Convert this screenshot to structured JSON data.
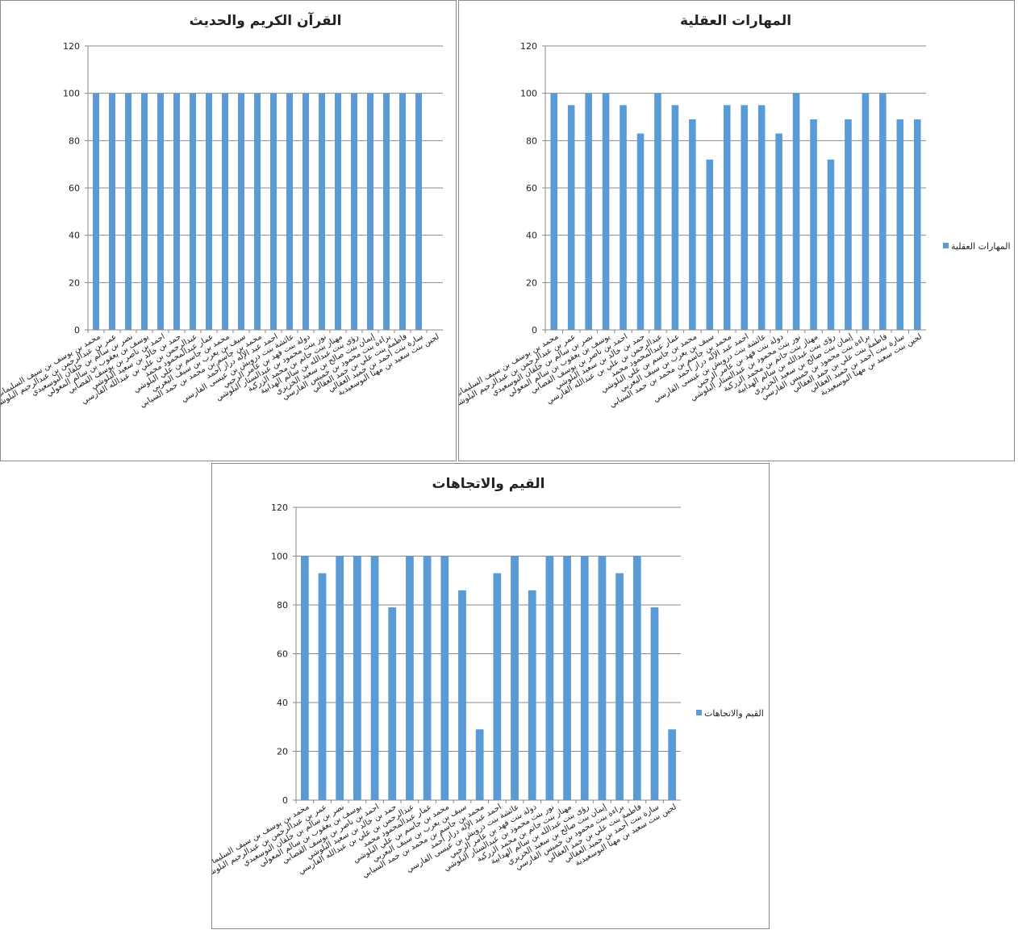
{
  "chart_data": [
    {
      "type": "bar",
      "title": "القرآن الكريم والحديث",
      "categories": [
        "محمد بن يوسف بن سيف السليماني",
        "عمر بن عبدالرحمن بن عبدالرحيم البلوشي",
        "نصر بن سالم بن خلفان البوسعيدي",
        "يوسف بن يعقوب بن سالم المعولي",
        "احمد بن ناصر بن يوسف القصابي",
        "حمد بن خالد بن سعيد البلوشي",
        "عبدالرحمن بن علي بن عبدالله الفارسي",
        "عمار عبدالمحمود محمد",
        "محمد بن جاسم بن علي البلوشي",
        "سيف بن يعرب بن سيف اليعربي",
        "محمد بن جاسم بن محمد بن حمد السيابي",
        "احمد عبد الإله دراز أحمد",
        "عائشة بنت درويش بن عيسى الفارسي",
        "دولة بنت فهد بن عامر الرحبي",
        "نور بنت محمود بن عبدالستار البلوشي",
        "مهناز بنت حاتم بن محمد الزركية",
        "رؤى بنت عبدالله بن سالم الهدابية",
        "إيمان بنت صالح بن سعيد الخزيري",
        "براءة بنت محمود بن خميس الفارسي",
        "فاطمة بنت علي بن حمد العقالي",
        "سارة بنت أحمد بن حميد العقالي",
        "لجين بنت سعيد بن مهنا البوسعيدية"
      ],
      "values": [
        100,
        100,
        100,
        100,
        100,
        100,
        100,
        100,
        100,
        100,
        100,
        100,
        100,
        100,
        100,
        100,
        100,
        100,
        100,
        100,
        100,
        null
      ],
      "color": "#5b9bd5",
      "ylim": [
        0,
        120
      ],
      "yticks": [
        0,
        20,
        40,
        60,
        80,
        100,
        120
      ],
      "grid": true
    },
    {
      "type": "bar",
      "title": "المهارات العقلية",
      "categories": [
        "محمد بن يوسف بن سيف السليماني",
        "عمر بن عبدالرحمن بن عبدالرحيم البلوشي",
        "نصر بن سالم بن خلفان البوسعيدي",
        "يوسف بن يعقوب بن سالم المعولي",
        "احمد بن ناصر بن يوسف القصابي",
        "حمد بن خالد بن سعيد البلوشي",
        "عبدالرحمن بن علي بن عبدالله الفارسي",
        "عمار عبدالمحمود محمد",
        "محمد بن جاسم بن علي البلوشي",
        "سيف بن يعرب بن سيف اليعربي",
        "محمد بن جاسم بن محمد بن حمد السيابي",
        "احمد عبد الإله دراز أحمد",
        "عائشة بنت درويش بن عيسى الفارسي",
        "دولة بنت فهد بن عامر الرحبي",
        "نور بنت محمود بن عبدالستار البلوشي",
        "مهناز بنت حاتم بن محمد الزركية",
        "رؤى بنت عبدالله بن سالم الهدابية",
        "إيمان بنت صالح بن سعيد الخزيري",
        "براءة بنت محمود بن خميس الفارسي",
        "فاطمة بنت علي بن حمد العقالي",
        "سارة بنت أحمد بن حميد العقالي",
        "لجين بنت سعيد بن مهنا البوسعيدية"
      ],
      "series": [
        {
          "name": "المهارات العقلية",
          "color": "#5b9bd5",
          "values": [
            100,
            95,
            100,
            100,
            95,
            83,
            100,
            95,
            89,
            72,
            95,
            95,
            95,
            83,
            100,
            89,
            72,
            89,
            100,
            100,
            89,
            89
          ]
        }
      ],
      "ylim": [
        0,
        120
      ],
      "yticks": [
        0,
        20,
        40,
        60,
        80,
        100,
        120
      ],
      "grid": true,
      "legend": "right"
    },
    {
      "type": "bar",
      "title": "القيم والاتجاهات",
      "categories": [
        "محمد بن يوسف بن سيف السليماني",
        "عمر بن عبدالرحمن بن عبدالرحيم البلوشي",
        "نصر بن سالم بن خلفان البوسعيدي",
        "يوسف بن يعقوب بن سالم المعولي",
        "احمد بن ناصر بن يوسف القصابي",
        "حمد بن خالد بن سعيد البلوشي",
        "عبدالرحمن بن علي بن عبدالله الفارسي",
        "عمار عبدالمحمود محمد",
        "محمد بن جاسم بن علي البلوشي",
        "سيف بن يعرب بن سيف اليعربي",
        "محمد بن جاسم بن محمد بن حمد السيابي",
        "احمد عبد الإله دراز أحمد",
        "عائشة بنت درويش بن عيسى الفارسي",
        "دولة بنت فهد بن عامر الرحبي",
        "نور بنت محمود بن عبدالستار البلوشي",
        "مهناز بنت حاتم بن محمد الزركية",
        "رؤى بنت عبدالله بن سالم الهدابية",
        "إيمان بنت صالح بن سعيد الخزيري",
        "براءة بنت محمود بن خميس الفارسي",
        "فاطمة بنت علي بن حمد العقالي",
        "سارة بنت أحمد بن حميد العقالي",
        "لجين بنت سعيد بن مهنا البوسعيدية"
      ],
      "series": [
        {
          "name": "القيم والاتجاهات",
          "color": "#5b9bd5",
          "values": [
            100,
            93,
            100,
            100,
            100,
            79,
            100,
            100,
            100,
            86,
            29,
            93,
            100,
            86,
            100,
            100,
            100,
            100,
            93,
            100,
            79,
            29
          ]
        }
      ],
      "ylim": [
        0,
        120
      ],
      "yticks": [
        0,
        20,
        40,
        60,
        80,
        100,
        120
      ],
      "grid": true,
      "legend": "right"
    }
  ]
}
